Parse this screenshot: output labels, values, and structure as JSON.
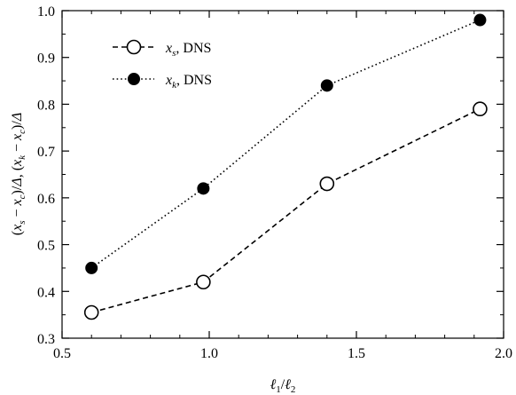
{
  "chart_data": {
    "type": "line",
    "title": "",
    "xlabel": "ℓ1/ℓ2",
    "ylabel": "(xs − xc)/Δ, (xk − xc)/Δ",
    "xlim": [
      0.5,
      2.0
    ],
    "ylim": [
      0.3,
      1.0
    ],
    "xticks": [
      "0.5",
      "1.0",
      "1.5",
      "2.0"
    ],
    "yticks": [
      "0.3",
      "0.4",
      "0.5",
      "0.6",
      "0.7",
      "0.8",
      "0.9",
      "1.0"
    ],
    "grid": false,
    "legend_position": "top-left",
    "series": [
      {
        "name": "xs, DNS",
        "line_style": "dashed",
        "marker": "open-circle",
        "x": [
          0.6,
          0.98,
          1.4,
          1.92
        ],
        "y": [
          0.355,
          0.42,
          0.63,
          0.79
        ]
      },
      {
        "name": "xk, DNS",
        "line_style": "dotted",
        "marker": "filled-circle",
        "x": [
          0.6,
          0.98,
          1.4,
          1.92
        ],
        "y": [
          0.45,
          0.62,
          0.84,
          0.98
        ]
      }
    ]
  }
}
